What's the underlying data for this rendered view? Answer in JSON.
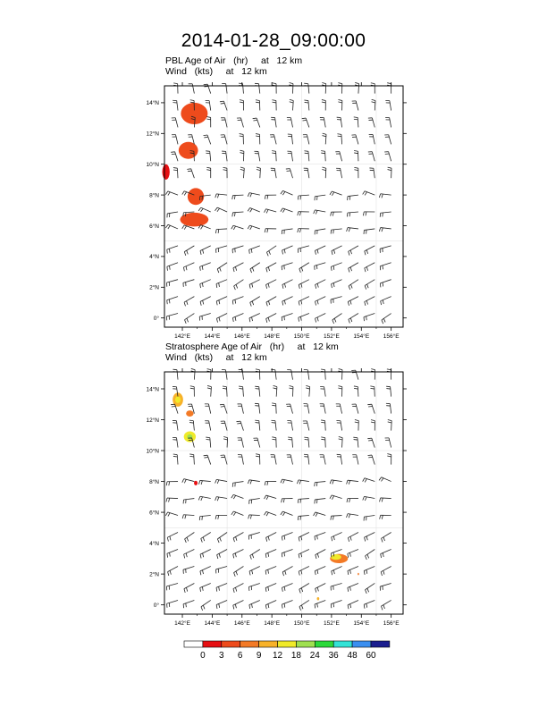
{
  "title": "2014-01-28_09:00:00",
  "chart_data": [
    {
      "type": "heatmap",
      "title": "PBL Age of Air   (hr)     at   12 km",
      "subtitle": "Wind   (kts)     at   12 km",
      "xlim": [
        140.8,
        156.8
      ],
      "ylim": [
        -0.6,
        15.1
      ],
      "x_ticks": [
        "142°E",
        "144°E",
        "146°E",
        "148°E",
        "150°E",
        "152°E",
        "154°E",
        "156°E"
      ],
      "y_ticks": [
        "0°",
        "2°N",
        "4°N",
        "6°N",
        "8°N",
        "10°N",
        "12°N",
        "14°N"
      ],
      "blobs": [
        {
          "lon": 142.8,
          "lat": 13.3,
          "rx": 0.9,
          "ry": 0.7,
          "value": 3,
          "color": "#ee4b1c"
        },
        {
          "lon": 142.4,
          "lat": 10.9,
          "rx": 0.65,
          "ry": 0.55,
          "value": 3,
          "color": "#ee4b1c"
        },
        {
          "lon": 140.9,
          "lat": 9.5,
          "rx": 0.25,
          "ry": 0.5,
          "value": 1,
          "color": "#e60f12"
        },
        {
          "lon": 142.9,
          "lat": 7.9,
          "rx": 0.55,
          "ry": 0.55,
          "value": 3,
          "color": "#ee4b1c"
        },
        {
          "lon": 142.8,
          "lat": 6.4,
          "rx": 0.95,
          "ry": 0.45,
          "value": 3,
          "color": "#ee4b1c"
        }
      ]
    },
    {
      "type": "heatmap",
      "title": "Stratosphere Age of Air   (hr)     at   12 km",
      "subtitle": "Wind   (kts)     at   12 km",
      "xlim": [
        140.8,
        156.8
      ],
      "ylim": [
        -0.6,
        15.1
      ],
      "x_ticks": [
        "142°E",
        "144°E",
        "146°E",
        "148°E",
        "150°E",
        "152°E",
        "154°E",
        "156°E"
      ],
      "y_ticks": [
        "0°",
        "2°N",
        "4°N",
        "6°N",
        "8°N",
        "10°N",
        "12°N",
        "14°N"
      ],
      "blobs": [
        {
          "lon": 141.7,
          "lat": 13.3,
          "rx": 0.35,
          "ry": 0.45,
          "value": 9,
          "color": "#f7b22a"
        },
        {
          "lon": 141.7,
          "lat": 13.3,
          "rx": 0.18,
          "ry": 0.22,
          "value": 12,
          "color": "#f0ea2a"
        },
        {
          "lon": 142.5,
          "lat": 12.4,
          "rx": 0.25,
          "ry": 0.2,
          "value": 6,
          "color": "#f37a26"
        },
        {
          "lon": 142.5,
          "lat": 10.9,
          "rx": 0.4,
          "ry": 0.35,
          "value": 12,
          "color": "#f0ea2a"
        },
        {
          "lon": 142.5,
          "lat": 10.9,
          "rx": 0.18,
          "ry": 0.15,
          "value": 24,
          "color": "#9fe050"
        },
        {
          "lon": 142.9,
          "lat": 7.9,
          "rx": 0.12,
          "ry": 0.15,
          "value": 3,
          "color": "#e60f12"
        },
        {
          "lon": 152.5,
          "lat": 3.0,
          "rx": 0.6,
          "ry": 0.3,
          "value": 6,
          "color": "#f37a26"
        },
        {
          "lon": 152.3,
          "lat": 3.1,
          "rx": 0.35,
          "ry": 0.18,
          "value": 12,
          "color": "#f0ea2a"
        },
        {
          "lon": 151.1,
          "lat": 0.4,
          "rx": 0.08,
          "ry": 0.1,
          "value": 9,
          "color": "#f7b22a"
        },
        {
          "lon": 153.8,
          "lat": 2.0,
          "rx": 0.05,
          "ry": 0.08,
          "value": 6,
          "color": "#f37a26"
        }
      ]
    }
  ],
  "colorbar": {
    "labels": [
      "0",
      "3",
      "6",
      "9",
      "12",
      "18",
      "24",
      "36",
      "48",
      "60"
    ],
    "colors": [
      "#ffffff",
      "#e60f12",
      "#ee4b1c",
      "#f37a26",
      "#f7b22a",
      "#f0ea2a",
      "#9fe050",
      "#2bd93a",
      "#33e3d6",
      "#3b8ff0",
      "#1b1e8f"
    ]
  }
}
